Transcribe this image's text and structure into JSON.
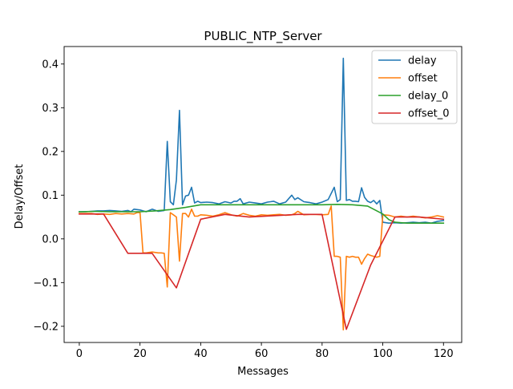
{
  "chart_data": {
    "type": "line",
    "title": "PUBLIC_NTP_Server",
    "xlabel": "Messages",
    "ylabel": "Delay/Offset",
    "xlim": [
      -5,
      126
    ],
    "ylim": [
      -0.237,
      0.44
    ],
    "xticks": [
      0,
      20,
      40,
      60,
      80,
      100,
      120
    ],
    "yticks": [
      -0.2,
      -0.1,
      0.0,
      0.1,
      0.2,
      0.3,
      0.4
    ],
    "xtick_labels": [
      "0",
      "20",
      "40",
      "60",
      "80",
      "100",
      "120"
    ],
    "ytick_labels": [
      "−0.2",
      "−0.1",
      "0.0",
      "0.1",
      "0.2",
      "0.3",
      "0.4"
    ],
    "grid": false,
    "legend_position": "top-right",
    "series": [
      {
        "name": "delay",
        "color": "#1f77b4",
        "x": [
          0,
          2,
          4,
          6,
          8,
          10,
          12,
          14,
          16,
          17,
          18,
          20,
          22,
          24,
          26,
          28,
          29,
          30,
          31,
          32,
          33,
          34,
          35,
          36,
          37,
          38,
          39,
          40,
          42,
          44,
          46,
          48,
          50,
          51,
          52,
          53,
          54,
          56,
          58,
          60,
          62,
          63,
          64,
          66,
          68,
          70,
          71,
          72,
          74,
          76,
          78,
          80,
          82,
          84,
          85,
          86,
          87,
          88,
          89,
          90,
          91,
          92,
          93,
          94,
          95,
          96,
          97,
          98,
          99,
          100,
          102,
          104,
          106,
          108,
          110,
          112,
          114,
          116,
          118,
          120
        ],
        "y": [
          0.062,
          0.062,
          0.063,
          0.064,
          0.064,
          0.065,
          0.064,
          0.063,
          0.065,
          0.062,
          0.068,
          0.066,
          0.062,
          0.068,
          0.063,
          0.065,
          0.223,
          0.085,
          0.078,
          0.135,
          0.294,
          0.078,
          0.098,
          0.1,
          0.118,
          0.082,
          0.086,
          0.083,
          0.084,
          0.083,
          0.08,
          0.085,
          0.082,
          0.086,
          0.086,
          0.092,
          0.08,
          0.084,
          0.082,
          0.08,
          0.084,
          0.085,
          0.086,
          0.08,
          0.084,
          0.1,
          0.09,
          0.094,
          0.085,
          0.083,
          0.08,
          0.084,
          0.09,
          0.118,
          0.085,
          0.09,
          0.413,
          0.088,
          0.09,
          0.086,
          0.086,
          0.085,
          0.117,
          0.095,
          0.086,
          0.083,
          0.088,
          0.08,
          0.088,
          0.038,
          0.036,
          0.037,
          0.036,
          0.037,
          0.038,
          0.037,
          0.038,
          0.036,
          0.04,
          0.042
        ]
      },
      {
        "name": "offset",
        "color": "#ff7f0e",
        "x": [
          0,
          2,
          4,
          6,
          8,
          10,
          12,
          14,
          16,
          18,
          19,
          20,
          21,
          22,
          24,
          26,
          27,
          28,
          29,
          30,
          31,
          32,
          33,
          34,
          35,
          36,
          37,
          38,
          39,
          40,
          42,
          44,
          46,
          48,
          50,
          52,
          54,
          56,
          58,
          60,
          62,
          64,
          66,
          68,
          70,
          71,
          72,
          74,
          76,
          78,
          80,
          82,
          83,
          84,
          85,
          86,
          87,
          88,
          89,
          90,
          91,
          92,
          93,
          94,
          95,
          96,
          97,
          98,
          99,
          100,
          102,
          104,
          106,
          108,
          110,
          112,
          114,
          116,
          118,
          120
        ],
        "y": [
          0.058,
          0.058,
          0.058,
          0.056,
          0.057,
          0.056,
          0.058,
          0.057,
          0.058,
          0.057,
          0.06,
          0.06,
          -0.032,
          -0.032,
          -0.03,
          -0.032,
          -0.032,
          -0.033,
          -0.11,
          0.06,
          0.055,
          0.05,
          -0.051,
          0.058,
          0.058,
          0.05,
          0.068,
          0.052,
          0.052,
          0.055,
          0.054,
          0.052,
          0.055,
          0.06,
          0.055,
          0.052,
          0.058,
          0.054,
          0.052,
          0.055,
          0.054,
          0.055,
          0.056,
          0.054,
          0.055,
          0.058,
          0.063,
          0.055,
          0.056,
          0.056,
          0.055,
          0.056,
          0.075,
          -0.04,
          -0.04,
          -0.042,
          -0.208,
          -0.04,
          -0.042,
          -0.04,
          -0.042,
          -0.042,
          -0.058,
          -0.045,
          -0.035,
          -0.038,
          -0.04,
          -0.042,
          -0.04,
          0.055,
          0.054,
          0.05,
          0.052,
          0.05,
          0.052,
          0.05,
          0.048,
          0.05,
          0.053,
          0.05
        ]
      },
      {
        "name": "delay_0",
        "color": "#2ca02c",
        "x": [
          0,
          5,
          10,
          15,
          20,
          25,
          30,
          35,
          40,
          45,
          50,
          55,
          60,
          65,
          70,
          75,
          80,
          85,
          90,
          95,
          100,
          102,
          104,
          106,
          108,
          110,
          115,
          120
        ],
        "y": [
          0.062,
          0.063,
          0.062,
          0.062,
          0.062,
          0.064,
          0.067,
          0.072,
          0.078,
          0.078,
          0.078,
          0.078,
          0.078,
          0.078,
          0.078,
          0.078,
          0.078,
          0.079,
          0.078,
          0.075,
          0.057,
          0.044,
          0.038,
          0.037,
          0.036,
          0.036,
          0.036,
          0.036
        ]
      },
      {
        "name": "offset_0",
        "color": "#d62728",
        "x": [
          0,
          8,
          16,
          24,
          32,
          40,
          48,
          56,
          64,
          72,
          80,
          88,
          96,
          104,
          112,
          120
        ],
        "y": [
          0.057,
          0.057,
          -0.033,
          -0.033,
          -0.112,
          0.045,
          0.056,
          0.05,
          0.053,
          0.056,
          0.056,
          -0.207,
          -0.06,
          0.05,
          0.05,
          0.045
        ]
      }
    ]
  }
}
